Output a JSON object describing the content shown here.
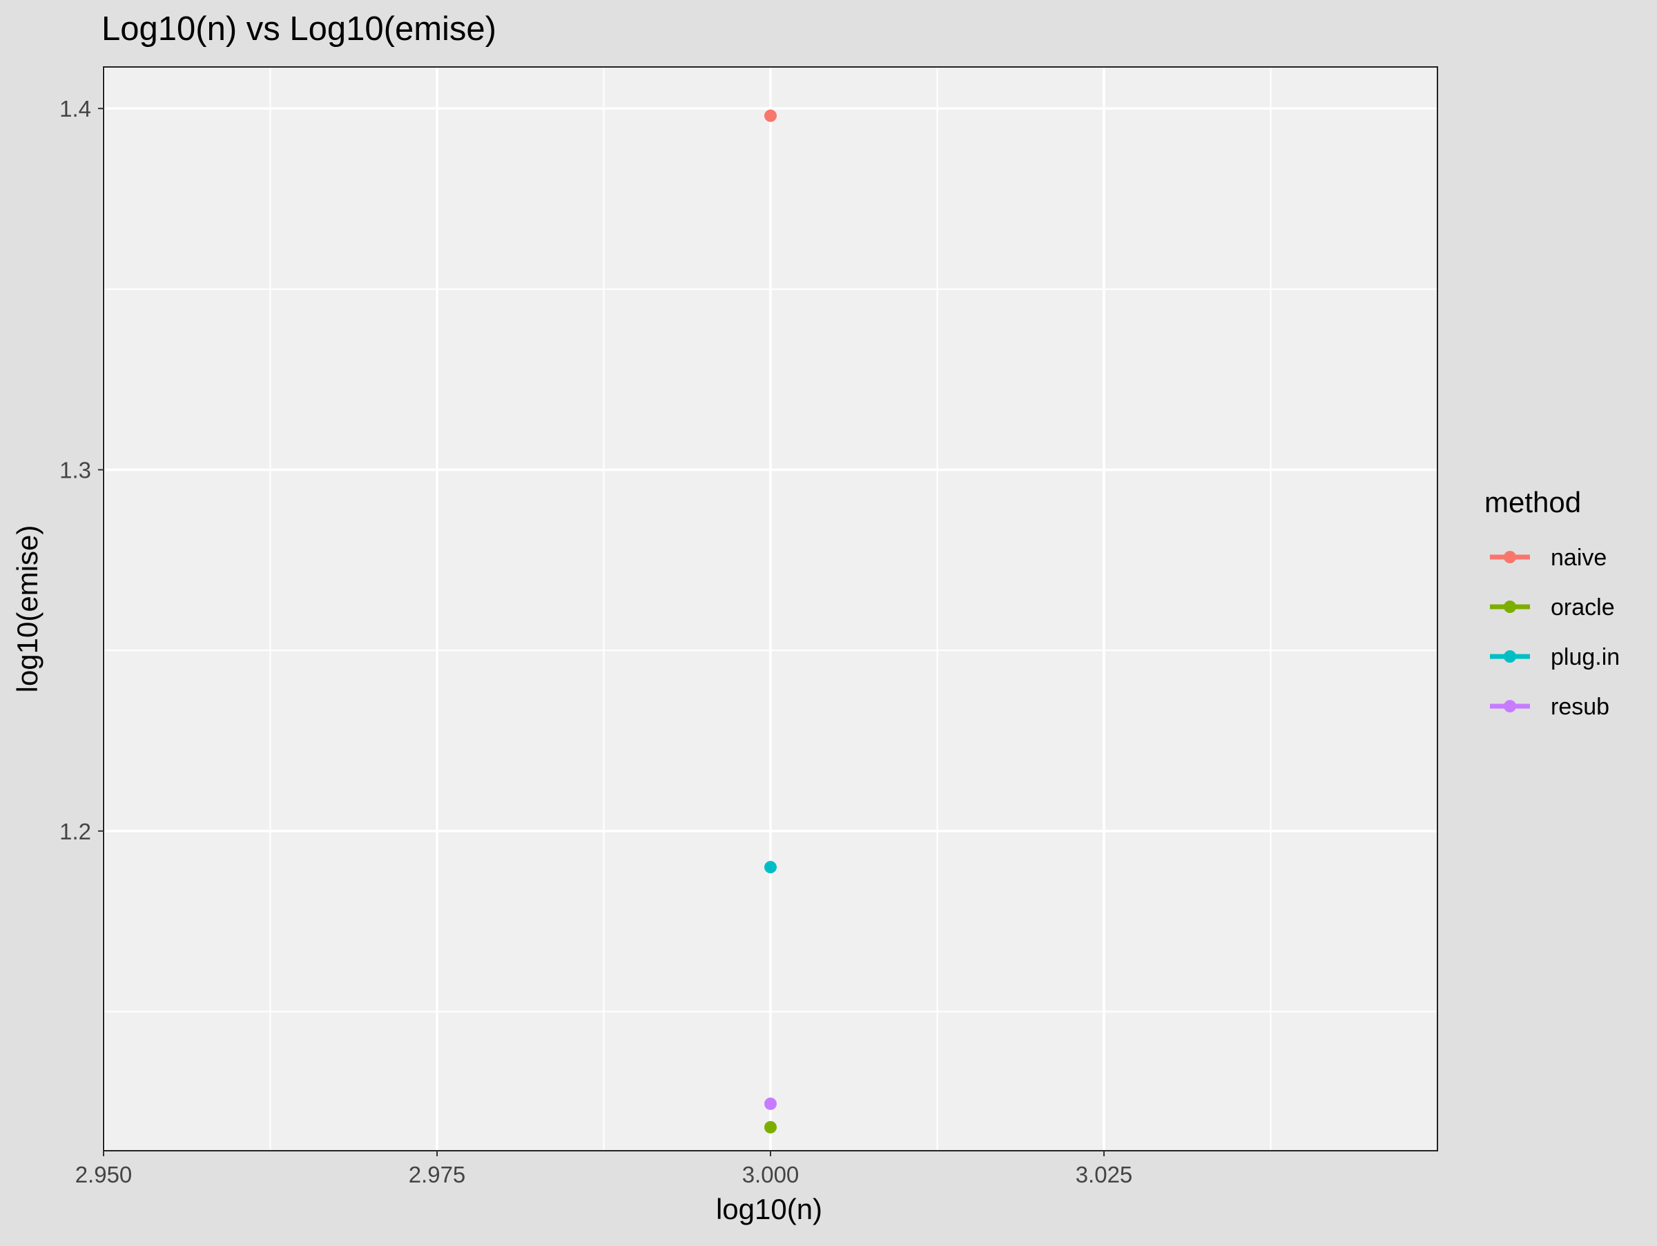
{
  "chart_data": {
    "type": "scatter",
    "title": "Log10(n) vs Log10(emise)",
    "xlabel": "log10(n)",
    "ylabel": "log10(emise)",
    "xlim": [
      2.95,
      3.05
    ],
    "ylim": [
      1.1115,
      1.4115
    ],
    "x_ticks": [
      2.95,
      2.975,
      3.0,
      3.025
    ],
    "x_tick_labels": [
      "2.950",
      "2.975",
      "3.000",
      "3.025"
    ],
    "y_ticks": [
      1.2,
      1.3,
      1.4
    ],
    "y_tick_labels": [
      "1.2",
      "1.3",
      "1.4"
    ],
    "x_minor_ticks": [
      2.9625,
      2.9875,
      3.0125,
      3.0375
    ],
    "y_minor_ticks": [
      1.15,
      1.25,
      1.35
    ],
    "grid": true,
    "legend": {
      "title": "method",
      "position": "right"
    },
    "series": [
      {
        "name": "naive",
        "color": "#F8766D",
        "x": [
          3.0
        ],
        "y": [
          1.398
        ]
      },
      {
        "name": "oracle",
        "color": "#7CAE00",
        "x": [
          3.0
        ],
        "y": [
          1.118
        ]
      },
      {
        "name": "plug.in",
        "color": "#00BFC4",
        "x": [
          3.0
        ],
        "y": [
          1.19
        ]
      },
      {
        "name": "resub",
        "color": "#C77CFF",
        "x": [
          3.0
        ],
        "y": [
          1.1245
        ]
      }
    ]
  }
}
